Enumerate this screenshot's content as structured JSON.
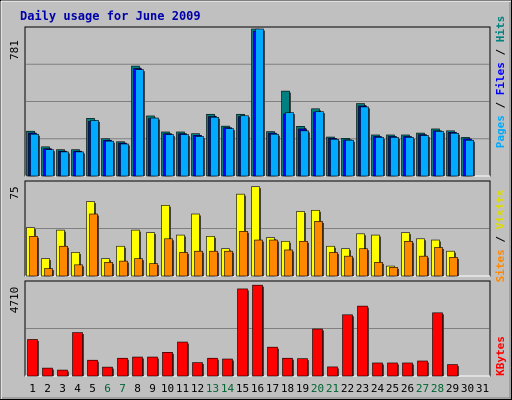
{
  "chart_data": [
    {
      "type": "bar",
      "title": "Daily usage for June 2009",
      "categories": [
        "1",
        "2",
        "3",
        "4",
        "5",
        "6",
        "7",
        "8",
        "9",
        "10",
        "11",
        "12",
        "13",
        "14",
        "15",
        "16",
        "17",
        "18",
        "19",
        "20",
        "21",
        "22",
        "23",
        "24",
        "25",
        "26",
        "27",
        "28",
        "29",
        "30",
        "31"
      ],
      "weekend_days": [
        "6",
        "7",
        "13",
        "14",
        "20",
        "21",
        "27",
        "28"
      ],
      "max_label": "781",
      "ylim": [
        0,
        781
      ],
      "legend": [
        "Pages",
        "Files",
        "Hits"
      ],
      "series": [
        {
          "name": "Hits",
          "color": "#008080",
          "values": [
            238,
            155,
            140,
            140,
            306,
            198,
            182,
            584,
            319,
            234,
            234,
            225,
            328,
            265,
            328,
            781,
            236,
            451,
            264,
            357,
            207,
            200,
            385,
            218,
            218,
            218,
            228,
            250,
            240,
            205,
            null
          ]
        },
        {
          "name": "Files",
          "color": "#0000ff",
          "values": [
            228,
            145,
            132,
            132,
            290,
            190,
            175,
            571,
            305,
            225,
            225,
            216,
            316,
            257,
            316,
            769,
            228,
            330,
            250,
            340,
            200,
            192,
            372,
            210,
            210,
            210,
            220,
            240,
            232,
            197,
            null
          ]
        },
        {
          "name": "Pages",
          "color": "#00aaff",
          "values": [
            222,
            140,
            128,
            128,
            295,
            185,
            170,
            565,
            308,
            220,
            220,
            210,
            312,
            252,
            320,
            781,
            222,
            337,
            240,
            342,
            195,
            190,
            367,
            205,
            205,
            205,
            215,
            237,
            227,
            190,
            null
          ]
        }
      ]
    },
    {
      "type": "bar",
      "categories": [
        "1",
        "2",
        "3",
        "4",
        "5",
        "6",
        "7",
        "8",
        "9",
        "10",
        "11",
        "12",
        "13",
        "14",
        "15",
        "16",
        "17",
        "18",
        "19",
        "20",
        "21",
        "22",
        "23",
        "24",
        "25",
        "26",
        "27",
        "28",
        "29",
        "30",
        "31"
      ],
      "max_label": "75",
      "ylim": [
        0,
        75
      ],
      "legend": [
        "Sites",
        "Visits"
      ],
      "series": [
        {
          "name": "Visits",
          "color": "#ffff00",
          "values": [
            39,
            14,
            37,
            19,
            60,
            14,
            24,
            37,
            35,
            57,
            33,
            50,
            32,
            22,
            66,
            72,
            31,
            28,
            52,
            53,
            24,
            22,
            34,
            33,
            8,
            35,
            30,
            29,
            20,
            null,
            null
          ]
        },
        {
          "name": "Sites",
          "color": "#ff8800",
          "values": [
            32,
            6,
            24,
            9,
            50,
            11,
            12,
            14,
            10,
            30,
            19,
            20,
            20,
            20,
            36,
            29,
            29,
            21,
            28,
            44,
            19,
            16,
            22,
            11,
            7,
            28,
            16,
            23,
            15,
            null,
            null
          ]
        }
      ]
    },
    {
      "type": "bar",
      "categories": [
        "1",
        "2",
        "3",
        "4",
        "5",
        "6",
        "7",
        "8",
        "9",
        "10",
        "11",
        "12",
        "13",
        "14",
        "15",
        "16",
        "17",
        "18",
        "19",
        "20",
        "21",
        "22",
        "23",
        "24",
        "25",
        "26",
        "27",
        "28",
        "29",
        "30",
        "31"
      ],
      "max_label": "4710",
      "ylim": [
        0,
        4710
      ],
      "legend": [
        "KBytes"
      ],
      "series": [
        {
          "name": "KBytes",
          "color": "#ff0000",
          "values": [
            1850,
            400,
            300,
            2200,
            800,
            450,
            900,
            960,
            960,
            1200,
            1720,
            680,
            900,
            860,
            4410,
            4600,
            1460,
            900,
            880,
            2380,
            460,
            3100,
            3540,
            660,
            660,
            660,
            760,
            3200,
            580,
            null,
            null
          ]
        }
      ]
    }
  ]
}
